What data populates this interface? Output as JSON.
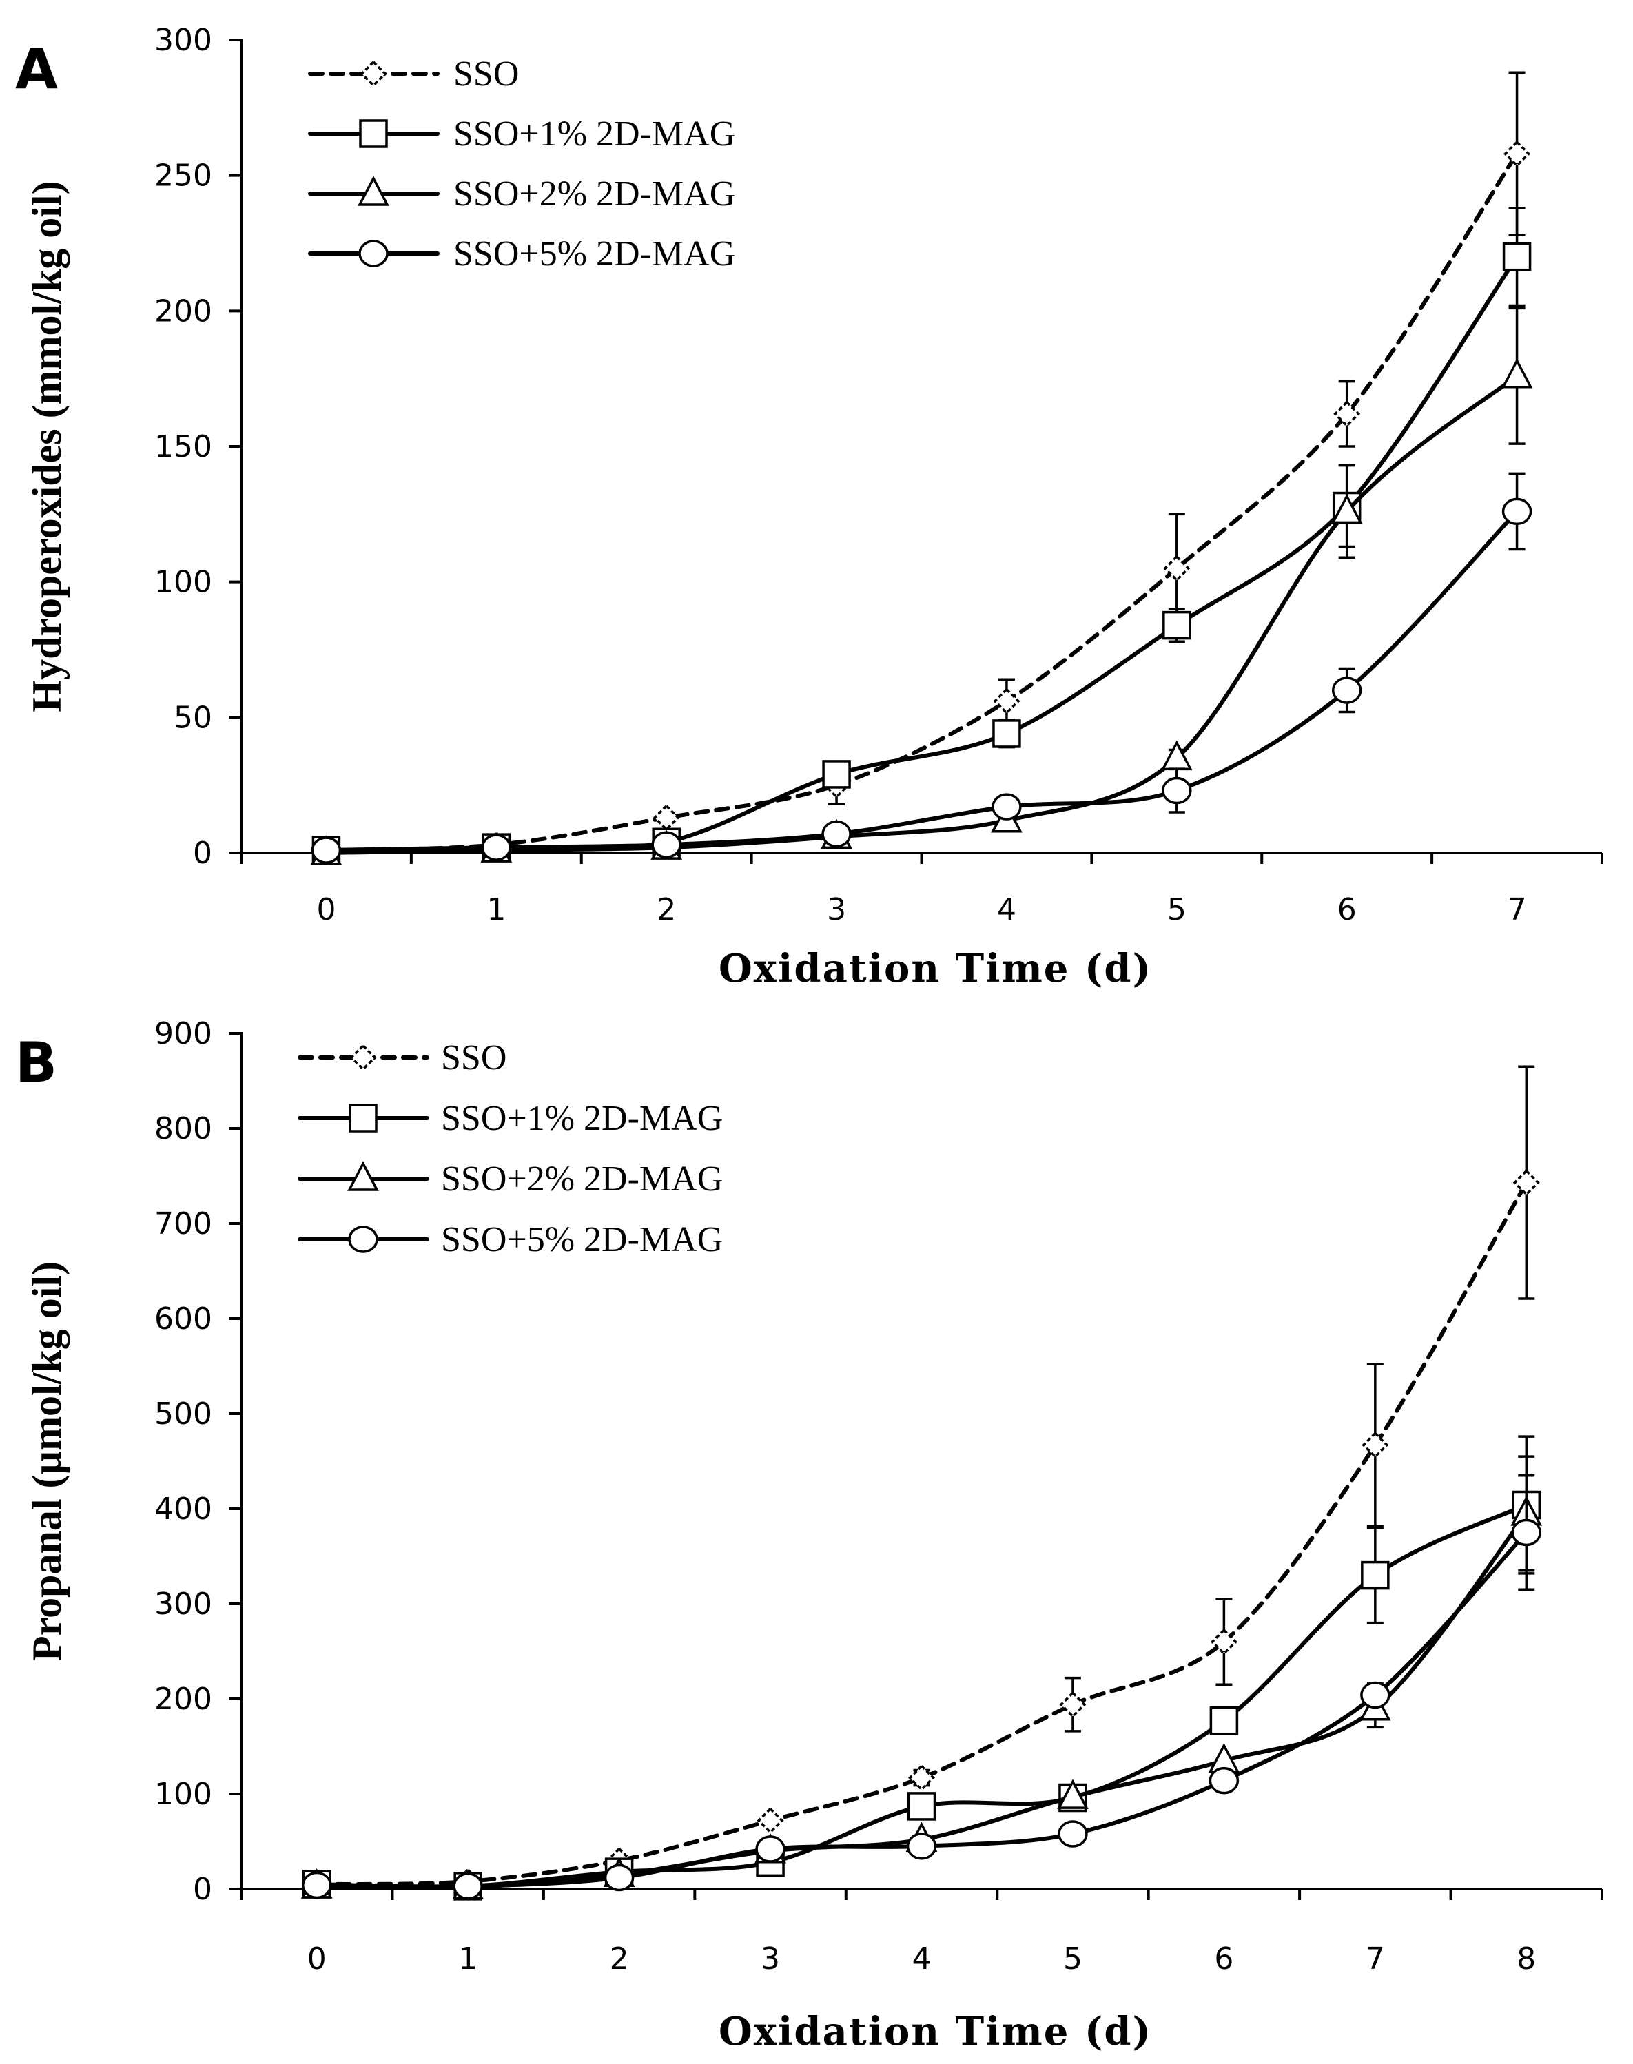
{
  "chart_data": [
    {
      "type": "line",
      "panel": "A",
      "xlabel": "Oxidation Time (d)",
      "ylabel": "Hydroperoxides (mmol/kg oil)",
      "x": [
        0,
        1,
        2,
        3,
        4,
        5,
        6,
        7
      ],
      "xlim": [
        -0.5,
        7.5
      ],
      "ylim": [
        0,
        300
      ],
      "yticks": [
        0,
        50,
        100,
        150,
        200,
        250,
        300
      ],
      "legend_position": "top-left",
      "series": [
        {
          "name": "SSO",
          "marker": "diamond",
          "style": "dashed",
          "values": [
            1,
            3,
            13,
            25,
            56,
            105,
            162,
            258
          ],
          "errors": [
            0,
            0,
            0,
            7,
            8,
            20,
            12,
            30
          ]
        },
        {
          "name": "SSO+1% 2D-MAG",
          "marker": "square",
          "style": "solid",
          "values": [
            1,
            2,
            4,
            29,
            44,
            84,
            128,
            220
          ],
          "errors": [
            0,
            0,
            0,
            0,
            5,
            6,
            15,
            18
          ]
        },
        {
          "name": "SSO+2% 2D-MAG",
          "marker": "triangle",
          "style": "solid",
          "values": [
            0,
            1,
            2,
            6,
            12,
            35,
            126,
            176
          ],
          "errors": [
            0,
            0,
            0,
            0,
            0,
            3,
            17,
            25
          ]
        },
        {
          "name": "SSO+5% 2D-MAG",
          "marker": "circle",
          "style": "solid",
          "values": [
            1,
            2,
            3,
            7,
            17,
            23,
            60,
            126
          ],
          "errors": [
            0,
            0,
            0,
            0,
            0,
            8,
            8,
            14
          ]
        }
      ]
    },
    {
      "type": "line",
      "panel": "B",
      "xlabel": "Oxidation Time (d)",
      "ylabel": "Propanal (µmol/kg oil)",
      "x": [
        0,
        1,
        2,
        3,
        4,
        5,
        6,
        7,
        8
      ],
      "xlim": [
        -0.5,
        8.5
      ],
      "ylim": [
        0,
        900
      ],
      "yticks": [
        0,
        100,
        200,
        300,
        400,
        500,
        600,
        700,
        800,
        900
      ],
      "legend_position": "top-left",
      "series": [
        {
          "name": "SSO",
          "marker": "diamond",
          "style": "dashed",
          "values": [
            5,
            8,
            30,
            72,
            117,
            194,
            260,
            467,
            743
          ],
          "errors": [
            0,
            0,
            0,
            0,
            8,
            28,
            45,
            85,
            122
          ]
        },
        {
          "name": "SSO+1% 2D-MAG",
          "marker": "square",
          "style": "solid",
          "values": [
            5,
            3,
            18,
            28,
            87,
            96,
            177,
            330,
            404
          ],
          "errors": [
            0,
            0,
            0,
            0,
            0,
            0,
            0,
            50,
            72
          ]
        },
        {
          "name": "SSO+2% 2D-MAG",
          "marker": "triangle",
          "style": "solid",
          "values": [
            3,
            2,
            15,
            40,
            52,
            97,
            135,
            190,
            395
          ],
          "errors": [
            0,
            0,
            0,
            0,
            0,
            0,
            0,
            20,
            60
          ]
        },
        {
          "name": "SSO+5% 2D-MAG",
          "marker": "circle",
          "style": "solid",
          "values": [
            4,
            3,
            12,
            42,
            45,
            58,
            114,
            204,
            375
          ],
          "errors": [
            0,
            0,
            0,
            0,
            0,
            0,
            0,
            12,
            60
          ]
        }
      ]
    }
  ]
}
